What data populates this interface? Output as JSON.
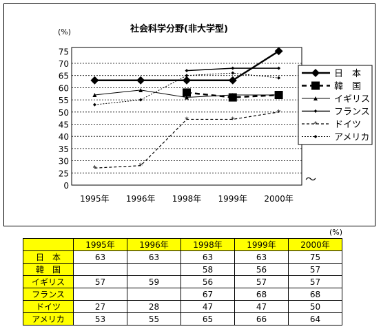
{
  "chart_data": {
    "type": "line",
    "title": "社会科学分野(非大学型)",
    "y_unit": "(%)",
    "categories": [
      "1995年",
      "1996年",
      "1998年",
      "1999年",
      "2000年"
    ],
    "ylim": [
      0,
      75
    ],
    "y_ticks": [
      "0",
      "25",
      "30",
      "35",
      "40",
      "45",
      "50",
      "55",
      "60",
      "65",
      "70",
      "75"
    ],
    "axis_break_mark": "〜",
    "grid": true,
    "legend_position": "right",
    "series": [
      {
        "name": "日　本",
        "values": [
          63,
          63,
          63,
          63,
          75
        ],
        "color": "#000000",
        "style": "thick-diamond"
      },
      {
        "name": "韓　国",
        "values": [
          null,
          null,
          58,
          56,
          57
        ],
        "color": "#000000",
        "style": "dashed-square"
      },
      {
        "name": "イギリス",
        "values": [
          57,
          59,
          56,
          57,
          57
        ],
        "color": "#000000",
        "style": "thin-triangle"
      },
      {
        "name": "フランス",
        "values": [
          null,
          null,
          67,
          68,
          68
        ],
        "color": "#000000",
        "style": "thin-small-diamond"
      },
      {
        "name": "ドイツ",
        "values": [
          27,
          28,
          47,
          47,
          50
        ],
        "color": "#000000",
        "style": "dashed-star"
      },
      {
        "name": "アメリカ",
        "values": [
          53,
          55,
          65,
          66,
          64
        ],
        "color": "#000000",
        "style": "dotted-diamond"
      }
    ]
  },
  "table": {
    "unit": "(%)",
    "headers": [
      "1995年",
      "1996年",
      "1998年",
      "1999年",
      "2000年"
    ],
    "rows": [
      {
        "label": "日　本",
        "values": [
          "63",
          "63",
          "63",
          "63",
          "75"
        ]
      },
      {
        "label": "韓　国",
        "values": [
          "",
          "",
          "58",
          "56",
          "57"
        ]
      },
      {
        "label": "イギリス",
        "values": [
          "57",
          "59",
          "56",
          "57",
          "57"
        ]
      },
      {
        "label": "フランス",
        "values": [
          "",
          "",
          "67",
          "68",
          "68"
        ]
      },
      {
        "label": "ドイツ",
        "values": [
          "27",
          "28",
          "47",
          "47",
          "50"
        ]
      },
      {
        "label": "アメリカ",
        "values": [
          "53",
          "55",
          "65",
          "66",
          "64"
        ]
      }
    ]
  }
}
